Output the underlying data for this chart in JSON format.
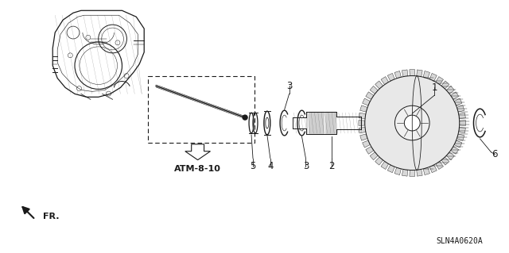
{
  "bg_color": "#ffffff",
  "line_color": "#1a1a1a",
  "part_label_ref": "ATM-8-10",
  "diagram_code": "SLN4A0620A",
  "fr_label": "FR.",
  "figsize": [
    6.4,
    3.19
  ],
  "dpi": 100
}
